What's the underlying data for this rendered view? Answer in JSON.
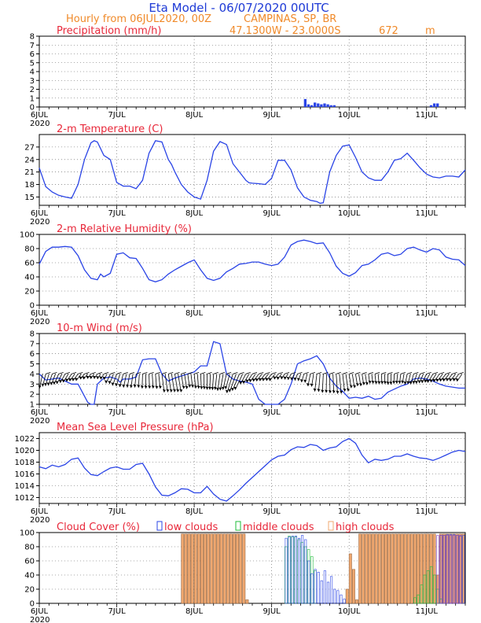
{
  "header": {
    "title": "Eta Model - 06/07/2020 00UTC",
    "subtitle": "Hourly from 06JUL2020, 00Z",
    "location": "CAMPINAS, SP, BR",
    "coords": "47.1300W - 23.0000S",
    "elevation": "672",
    "elevation_unit": "m"
  },
  "colors": {
    "title": "#1e3ad6",
    "subtitle": "#f08a2a",
    "panel_title": "#e8283a",
    "line": "#2a44e6",
    "low": "#2a44e6",
    "middle": "#1fbe3a",
    "high": "#f0a870",
    "high_edge": "#9a6a44",
    "purple": "#8a40c8"
  },
  "x_axis": {
    "ticks": [
      "6JUL",
      "7JUL",
      "8JUL",
      "9JUL",
      "10JUL",
      "11JUL"
    ],
    "year": "2020",
    "hours_total": 132
  },
  "legend": {
    "low": "low clouds",
    "middle": "middle clouds",
    "high": "high clouds"
  },
  "chart_data": [
    {
      "type": "bar",
      "name": "precipitation",
      "title": "Precipitation (mm/h)",
      "ylim": [
        0,
        8
      ],
      "yticks": [
        0,
        1,
        2,
        3,
        4,
        5,
        6,
        7,
        8
      ],
      "x": [
        82,
        83,
        84,
        85,
        86,
        87,
        88,
        89,
        90,
        91,
        121,
        122,
        123
      ],
      "values": [
        0.9,
        0.3,
        0.2,
        0.5,
        0.4,
        0.3,
        0.4,
        0.3,
        0.2,
        0.2,
        0.2,
        0.4,
        0.4
      ]
    },
    {
      "type": "line",
      "name": "temperature",
      "title": "2-m Temperature (C)",
      "ylim": [
        13,
        30
      ],
      "yticks": [
        15,
        18,
        21,
        24,
        27
      ],
      "x": [
        0,
        2,
        4,
        6,
        8,
        10,
        12,
        14,
        16,
        17,
        18,
        20,
        22,
        24,
        26,
        28,
        30,
        32,
        34,
        36,
        38,
        40,
        41,
        42,
        44,
        46,
        48,
        50,
        52,
        54,
        56,
        58,
        60,
        62,
        64,
        65,
        66,
        68,
        70,
        72,
        74,
        76,
        78,
        80,
        82,
        84,
        86,
        87,
        88,
        90,
        92,
        94,
        96,
        98,
        100,
        102,
        104,
        106,
        108,
        110,
        112,
        114,
        116,
        118,
        120,
        122,
        124,
        126,
        128,
        130,
        132
      ],
      "values": [
        22.0,
        17.5,
        16.2,
        15.4,
        15.0,
        14.7,
        18.0,
        24.0,
        28.0,
        28.5,
        28.2,
        25.0,
        24.0,
        18.5,
        17.6,
        17.6,
        17.0,
        19.0,
        25.5,
        28.5,
        28.2,
        24.0,
        22.8,
        21.0,
        18.0,
        16.2,
        15.0,
        14.5,
        19.0,
        26.0,
        28.3,
        27.6,
        23.0,
        21.0,
        19.0,
        18.4,
        18.3,
        18.2,
        18.0,
        19.5,
        23.8,
        23.8,
        21.5,
        17.2,
        15.0,
        14.2,
        13.9,
        13.5,
        13.6,
        21.0,
        25.0,
        27.2,
        27.5,
        24.5,
        21.0,
        19.6,
        19.0,
        19.0,
        21.0,
        23.8,
        24.2,
        25.5,
        23.8,
        22.0,
        20.5,
        19.8,
        19.6,
        20.0,
        20.0,
        19.8,
        21.5
      ]
    },
    {
      "type": "line",
      "name": "relative_humidity",
      "title": "2-m Relative Humidity (%)",
      "ylim": [
        0,
        100
      ],
      "yticks": [
        0,
        20,
        40,
        60,
        80,
        100
      ],
      "x": [
        0,
        2,
        4,
        6,
        8,
        10,
        12,
        14,
        16,
        18,
        19,
        20,
        22,
        24,
        26,
        28,
        30,
        32,
        34,
        36,
        38,
        40,
        42,
        44,
        46,
        48,
        50,
        52,
        54,
        56,
        58,
        60,
        62,
        64,
        66,
        68,
        70,
        72,
        74,
        76,
        78,
        80,
        82,
        84,
        86,
        88,
        90,
        92,
        94,
        96,
        98,
        100,
        102,
        104,
        106,
        108,
        110,
        112,
        114,
        116,
        118,
        120,
        122,
        124,
        126,
        128,
        130,
        132
      ],
      "values": [
        58,
        76,
        82,
        82,
        83,
        82,
        70,
        50,
        38,
        36,
        44,
        40,
        45,
        72,
        74,
        67,
        66,
        52,
        36,
        33,
        36,
        44,
        50,
        55,
        60,
        64,
        50,
        38,
        35,
        38,
        47,
        52,
        58,
        59,
        61,
        61,
        58,
        56,
        58,
        68,
        85,
        90,
        92,
        90,
        87,
        88,
        74,
        55,
        45,
        41,
        46,
        56,
        58,
        64,
        72,
        74,
        70,
        72,
        80,
        82,
        78,
        75,
        80,
        78,
        68,
        65,
        64,
        56
      ]
    },
    {
      "type": "line",
      "name": "wind",
      "title": "10-m Wind (m/s)",
      "ylim": [
        1,
        8
      ],
      "yticks": [
        1,
        2,
        3,
        4,
        5,
        6,
        7,
        8
      ],
      "barbs_at": 4.0,
      "x": [
        0,
        2,
        4,
        6,
        8,
        10,
        12,
        14,
        15,
        16,
        17,
        18,
        20,
        22,
        24,
        25,
        26,
        28,
        30,
        32,
        34,
        36,
        38,
        40,
        42,
        44,
        46,
        48,
        50,
        52,
        54,
        56,
        58,
        60,
        62,
        64,
        66,
        68,
        70,
        72,
        74,
        76,
        78,
        80,
        82,
        84,
        86,
        88,
        90,
        92,
        94,
        96,
        98,
        100,
        102,
        104,
        106,
        108,
        110,
        112,
        114,
        116,
        118,
        120,
        122,
        124,
        126,
        128,
        130,
        132
      ],
      "values": [
        4.0,
        3.4,
        3.5,
        3.6,
        3.3,
        3.0,
        3.0,
        1.8,
        1.2,
        1.0,
        1.0,
        3.0,
        3.6,
        3.7,
        3.5,
        3.2,
        3.5,
        3.5,
        3.7,
        5.4,
        5.5,
        5.5,
        4.0,
        3.3,
        3.6,
        3.8,
        4.0,
        4.2,
        4.8,
        4.8,
        7.2,
        7.0,
        4.0,
        3.5,
        3.3,
        3.2,
        3.0,
        1.5,
        1.0,
        1.0,
        1.0,
        1.5,
        3.0,
        5.0,
        5.3,
        5.5,
        5.8,
        5.0,
        3.6,
        2.8,
        2.3,
        1.6,
        1.7,
        1.6,
        1.8,
        1.5,
        1.6,
        2.2,
        2.5,
        2.8,
        3.0,
        3.5,
        3.6,
        3.5,
        3.3,
        3.0,
        2.8,
        2.7,
        2.6,
        2.6
      ]
    },
    {
      "type": "line",
      "name": "mslp",
      "title": "Mean Sea Level Pressure (hPa)",
      "ylim": [
        1011,
        1023
      ],
      "yticks": [
        1012,
        1014,
        1016,
        1018,
        1020,
        1022
      ],
      "x": [
        0,
        2,
        4,
        6,
        8,
        10,
        12,
        14,
        16,
        18,
        20,
        22,
        24,
        26,
        28,
        30,
        32,
        34,
        36,
        38,
        40,
        42,
        44,
        46,
        48,
        50,
        52,
        54,
        56,
        58,
        60,
        62,
        64,
        66,
        68,
        70,
        72,
        74,
        76,
        78,
        80,
        82,
        84,
        86,
        88,
        90,
        92,
        94,
        96,
        98,
        100,
        102,
        104,
        106,
        108,
        110,
        112,
        114,
        116,
        118,
        120,
        122,
        124,
        126,
        128,
        130,
        132
      ],
      "values": [
        1017.2,
        1016.9,
        1017.5,
        1017.2,
        1017.6,
        1018.5,
        1018.7,
        1017.0,
        1015.9,
        1015.7,
        1016.4,
        1017.0,
        1017.2,
        1016.8,
        1016.8,
        1017.6,
        1017.8,
        1016.0,
        1013.8,
        1012.4,
        1012.3,
        1012.8,
        1013.5,
        1013.4,
        1012.8,
        1012.8,
        1013.9,
        1012.6,
        1011.7,
        1011.4,
        1012.3,
        1013.3,
        1014.4,
        1015.4,
        1016.4,
        1017.4,
        1018.4,
        1019.0,
        1019.2,
        1020.1,
        1020.6,
        1020.5,
        1021.0,
        1020.8,
        1020.0,
        1020.4,
        1020.6,
        1021.5,
        1022.0,
        1021.2,
        1019.2,
        1017.9,
        1018.5,
        1018.3,
        1018.5,
        1019.0,
        1019.0,
        1019.4,
        1019.0,
        1018.7,
        1018.6,
        1018.3,
        1018.7,
        1019.2,
        1019.7,
        1020.0,
        1019.8
      ]
    },
    {
      "type": "bar",
      "name": "cloud_cover",
      "title": "Cloud Cover (%)",
      "ylim": [
        0,
        100
      ],
      "yticks": [
        0,
        20,
        40,
        60,
        80,
        100
      ],
      "series": [
        {
          "name": "high clouds",
          "x": [
            44,
            45,
            46,
            47,
            48,
            49,
            50,
            51,
            52,
            53,
            54,
            55,
            56,
            57,
            58,
            59,
            60,
            61,
            62,
            63,
            64,
            95,
            96,
            97,
            98,
            99,
            100,
            101,
            102,
            103,
            104,
            105,
            106,
            107,
            108,
            109,
            110,
            111,
            112,
            113,
            114,
            115,
            116,
            117,
            118,
            119,
            120,
            121,
            122,
            123,
            124,
            125,
            126,
            127,
            128,
            129,
            130,
            131
          ],
          "values": [
            98,
            98,
            98,
            98,
            98,
            98,
            98,
            98,
            98,
            98,
            98,
            98,
            98,
            98,
            98,
            98,
            98,
            98,
            98,
            98,
            5,
            20,
            70,
            48,
            5,
            98,
            98,
            98,
            98,
            98,
            98,
            98,
            98,
            98,
            98,
            98,
            98,
            98,
            98,
            98,
            98,
            98,
            98,
            98,
            98,
            98,
            98,
            98,
            98,
            40,
            98,
            98,
            98,
            98,
            98,
            98,
            98,
            98
          ]
        },
        {
          "name": "middle clouds",
          "x": [
            76,
            77,
            78,
            79,
            80,
            81,
            82,
            83,
            84,
            85,
            116,
            117,
            118,
            119,
            120,
            121,
            122,
            123,
            124,
            125,
            126,
            127
          ],
          "values": [
            80,
            95,
            94,
            94,
            90,
            86,
            80,
            76,
            66,
            46,
            8,
            12,
            26,
            40,
            46,
            52,
            40,
            20,
            6,
            0,
            0,
            0
          ]
        },
        {
          "name": "low clouds",
          "x": [
            76,
            77,
            78,
            79,
            80,
            81,
            82,
            83,
            84,
            85,
            86,
            87,
            88,
            89,
            90,
            91,
            92,
            93,
            94,
            124,
            125,
            126,
            127,
            128,
            129,
            130,
            131
          ],
          "values": [
            92,
            94,
            95,
            95,
            92,
            96,
            90,
            60,
            42,
            48,
            44,
            32,
            46,
            30,
            38,
            20,
            18,
            12,
            6,
            96,
            96,
            97,
            97,
            97,
            96,
            95,
            96
          ]
        },
        {
          "name": "purple",
          "x": [
            123,
            124,
            125,
            126,
            127,
            128,
            129,
            130
          ],
          "values": [
            96,
            96,
            96,
            96,
            96,
            96,
            96,
            96
          ]
        }
      ]
    }
  ]
}
